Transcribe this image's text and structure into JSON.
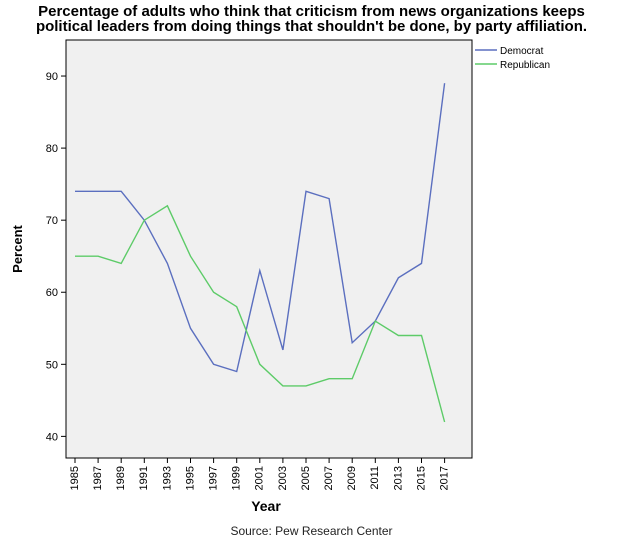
{
  "chart_data": {
    "type": "line",
    "title_lines": [
      "Percentage of adults who think that criticism from news organizations keeps",
      "political leaders from doing things that shouldn't be done, by party affiliation."
    ],
    "xlabel": "Year",
    "ylabel": "Percent",
    "source": "Source: Pew Research Center",
    "categories": [
      "1985",
      "1987",
      "1989",
      "1991",
      "1993",
      "1995",
      "1997",
      "1999",
      "2001",
      "2003",
      "2005",
      "2007",
      "2009",
      "2011",
      "2013",
      "2015",
      "2017"
    ],
    "yticks": [
      40,
      50,
      60,
      70,
      80,
      90
    ],
    "ylim": [
      37,
      95
    ],
    "grid": false,
    "legend_position": "top-right",
    "series": [
      {
        "name": "Democrat",
        "color": "#5b6fbf",
        "values": [
          74,
          74,
          74,
          70,
          64,
          55,
          50,
          49,
          63,
          52,
          74,
          73,
          53,
          56,
          62,
          64,
          89
        ]
      },
      {
        "name": "Republican",
        "color": "#5dcb68",
        "values": [
          65,
          65,
          64,
          70,
          72,
          65,
          60,
          58,
          50,
          47,
          47,
          48,
          48,
          56,
          54,
          54,
          42
        ]
      }
    ]
  }
}
